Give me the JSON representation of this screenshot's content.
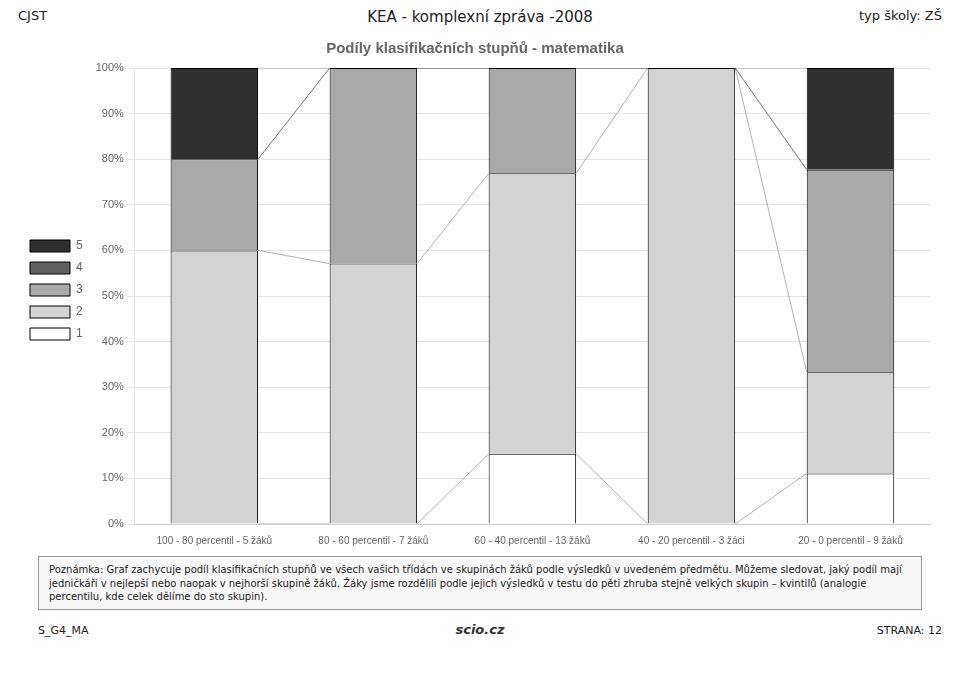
{
  "chart_data": {
    "type": "bar",
    "stacked": true,
    "title": "Podíly klasifikačních stupňů - matematika",
    "subtitle": "KEA - komplexní zpráva -2008",
    "header_left": "CJST",
    "header_right": "typ školy: ZŠ",
    "note": "Poznámka: Graf zachycuje podíl klasifikačních stupňů ve všech vašich třídách ve skupinách žáků podle výsledků v uvedeném předmětu. Můžeme sledovat, jaký podíl mají jedničkáři v nejlepší nebo naopak v nejhorší skupině žáků. Žáky jsme rozdělili podle jejich výsledků v testu do pěti zhruba stejně velkých skupin – kvintilů (analogie percentilu, kde celek dělíme do sto skupin).",
    "footer_left": "S_G4_MA",
    "footer_center": "scio.cz",
    "footer_right": "STRANA: 12",
    "categories": [
      "100 - 80 percentil - 5 žáků",
      "80 - 60 percentil - 7 žáků",
      "60 - 40 percentil - 13 žáků",
      "40 - 20 percentil - 3 žáci",
      "20 - 0 percentil - 9 žáků"
    ],
    "series": [
      {
        "name": "1",
        "color": "#ffffff",
        "values": [
          0.0,
          0.0,
          0.154,
          0.0,
          0.111
        ]
      },
      {
        "name": "2",
        "color": "#d3d3d3",
        "values": [
          0.6,
          0.571,
          0.615,
          1.0,
          0.222
        ]
      },
      {
        "name": "3",
        "color": "#a9a9a9",
        "values": [
          0.2,
          0.429,
          0.231,
          0.0,
          0.444
        ]
      },
      {
        "name": "4",
        "color": "#606060",
        "values": [
          0.0,
          0.0,
          0.0,
          0.0,
          0.0
        ]
      },
      {
        "name": "5",
        "color": "#303030",
        "values": [
          0.2,
          0.0,
          0.0,
          0.0,
          0.223
        ]
      }
    ],
    "ylim": [
      0,
      1.0
    ],
    "yticks": [
      {
        "value": 0.0,
        "label": "0%"
      },
      {
        "value": 0.1,
        "label": "10%"
      },
      {
        "value": 0.2,
        "label": "20%"
      },
      {
        "value": 0.3,
        "label": "30%"
      },
      {
        "value": 0.4,
        "label": "40%"
      },
      {
        "value": 0.5,
        "label": "50%"
      },
      {
        "value": 0.6,
        "label": "60%"
      },
      {
        "value": 0.7,
        "label": "70%"
      },
      {
        "value": 0.8,
        "label": "80%"
      },
      {
        "value": 0.9,
        "label": "90%"
      },
      {
        "value": 1.0,
        "label": "100%"
      }
    ],
    "grid": true,
    "legend": "left"
  }
}
